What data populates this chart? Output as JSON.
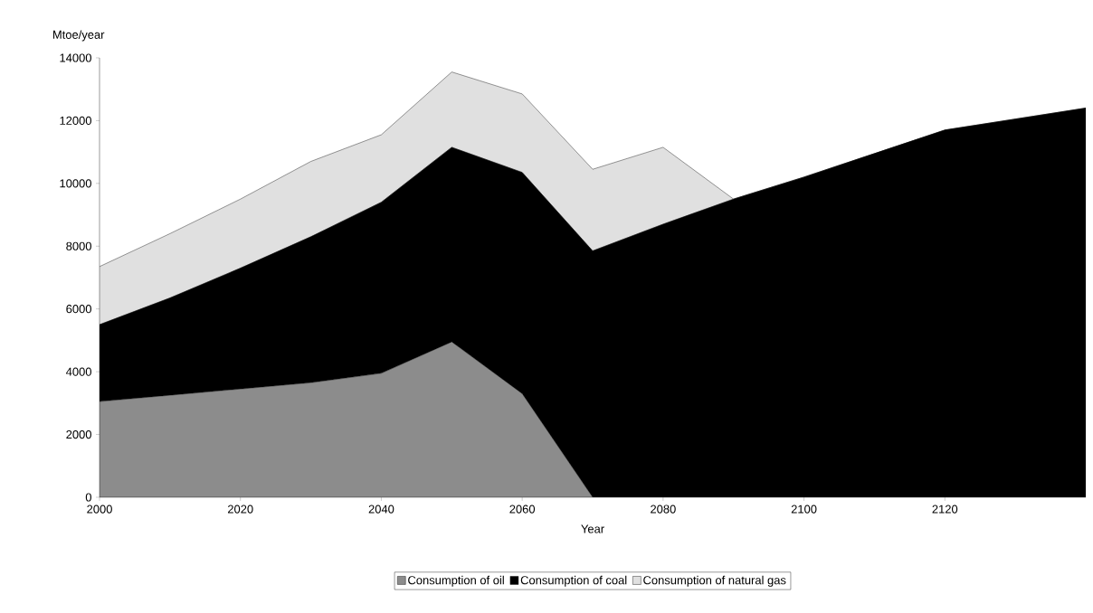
{
  "chart_data": {
    "type": "area",
    "stacked": true,
    "ylabel": "Mtoe/year",
    "xlabel": "Year",
    "x": [
      2000,
      2010,
      2020,
      2030,
      2040,
      2050,
      2060,
      2070,
      2080,
      2090,
      2100,
      2110,
      2120,
      2130,
      2140
    ],
    "xlim": [
      2000,
      2140
    ],
    "xticks": [
      2000,
      2020,
      2040,
      2060,
      2080,
      2100,
      2120
    ],
    "ylim": [
      0,
      14000
    ],
    "yticks": [
      0,
      2000,
      4000,
      6000,
      8000,
      10000,
      12000,
      14000
    ],
    "grid": false,
    "legend": "bottom",
    "series": [
      {
        "name": "Consumption of oil",
        "color": "#8c8c8c",
        "values": [
          3050,
          3250,
          3450,
          3650,
          3950,
          4950,
          3300,
          0,
          0,
          0,
          0,
          0,
          0,
          0,
          0
        ]
      },
      {
        "name": "Consumption of coal",
        "color": "#000000",
        "values": [
          2450,
          3100,
          3850,
          4650,
          5450,
          6200,
          7050,
          7850,
          8700,
          9500,
          10200,
          10950,
          11700,
          12050,
          12400
        ]
      },
      {
        "name": "Consumption of natural gas",
        "color": "#e0e0e0",
        "values": [
          1850,
          2050,
          2200,
          2400,
          2150,
          2400,
          2500,
          2600,
          2450,
          0,
          0,
          0,
          0,
          0,
          0
        ]
      }
    ]
  }
}
